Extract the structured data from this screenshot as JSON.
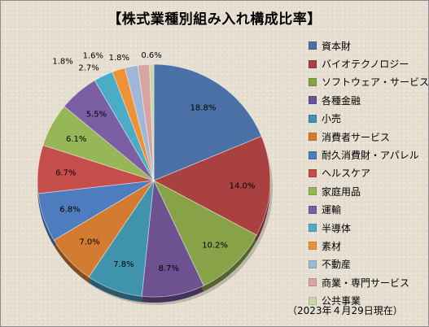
{
  "title": "【株式業種別組み入れ構成比率】",
  "footnote": "（2023年４月29日現在）",
  "chart_data": {
    "type": "pie",
    "unit": "%",
    "legend_position": "right",
    "slices": [
      {
        "label": "資本財",
        "value": 18.8,
        "display": "18.8%",
        "color": "#4a70a6"
      },
      {
        "label": "バイオテクノロジー",
        "value": 14.0,
        "display": "14.0%",
        "color": "#a8413f"
      },
      {
        "label": "ソフトウェア・サービス",
        "value": 10.2,
        "display": "10.2%",
        "color": "#87a247"
      },
      {
        "label": "各種金融",
        "value": 8.7,
        "display": "8.7%",
        "color": "#6d5191"
      },
      {
        "label": "小売",
        "value": 7.8,
        "display": "7.8%",
        "color": "#3f93ac"
      },
      {
        "label": "消費者サービス",
        "value": 7.0,
        "display": "7.0%",
        "color": "#d47b32"
      },
      {
        "label": "耐久消費財・アパレル",
        "value": 6.8,
        "display": "6.8%",
        "color": "#4d7dbf"
      },
      {
        "label": "ヘルスケア",
        "value": 6.7,
        "display": "6.7%",
        "color": "#c54d4a"
      },
      {
        "label": "家庭用品",
        "value": 6.1,
        "display": "6.1%",
        "color": "#97b655"
      },
      {
        "label": "運輸",
        "value": 5.5,
        "display": "5.5%",
        "color": "#7c5ea3"
      },
      {
        "label": "半導体",
        "value": 2.7,
        "display": "2.7%",
        "color": "#4aacc5"
      },
      {
        "label": "素材",
        "value": 1.8,
        "display": "1.8%",
        "color": "#ee9236"
      },
      {
        "label": "不動産",
        "value": 1.8,
        "display": "1.8%",
        "color": "#9fb6d8"
      },
      {
        "label": "商業・専門サービス",
        "value": 1.6,
        "display": "1.6%",
        "color": "#d9a3a2"
      },
      {
        "label": "公共事業",
        "value": 0.6,
        "display": "0.6%",
        "color": "#c6d9a5"
      }
    ]
  }
}
